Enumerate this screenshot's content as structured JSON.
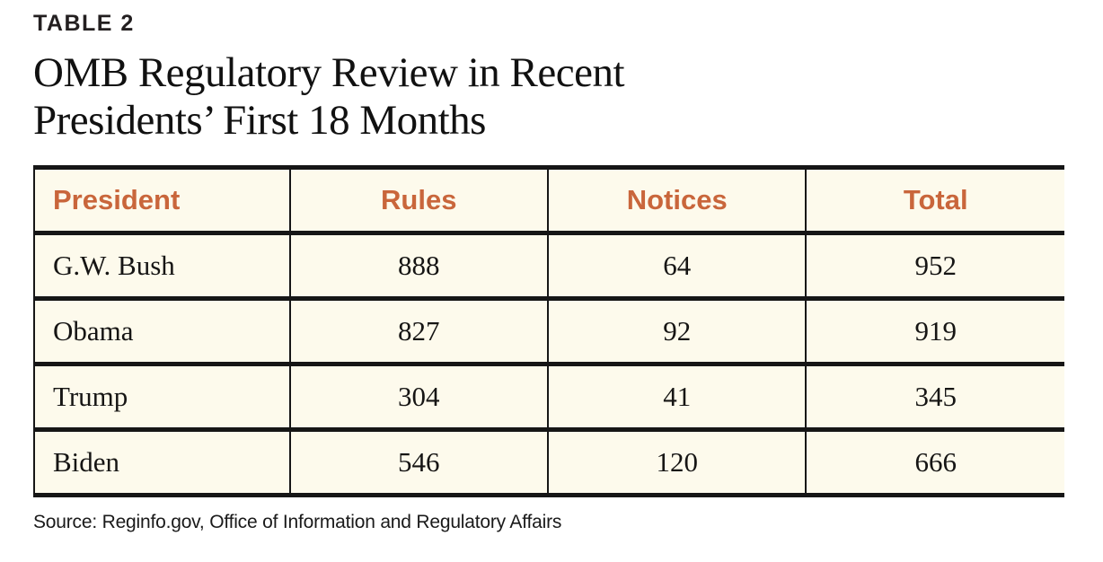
{
  "figure": {
    "label": "TABLE 2",
    "title_line1": "OMB Regulatory Review in Recent",
    "title_line2": "Presidents’ First 18 Months",
    "source": "Source: Reginfo.gov, Office of Information and Regulatory Affairs"
  },
  "table": {
    "columns": [
      "President",
      "Rules",
      "Notices",
      "Total"
    ],
    "rows": [
      {
        "president": "G.W. Bush",
        "rules": "888",
        "notices": "64",
        "total": "952"
      },
      {
        "president": "Obama",
        "rules": "827",
        "notices": "92",
        "total": "919"
      },
      {
        "president": "Trump",
        "rules": "304",
        "notices": "41",
        "total": "345"
      },
      {
        "president": "Biden",
        "rules": "546",
        "notices": "120",
        "total": "666"
      }
    ]
  },
  "colors": {
    "header_text": "#c9663b",
    "cell_background": "#fdfaec",
    "rule_lines": "#161616",
    "page_background": "#ffffff",
    "body_text": "#161514"
  }
}
